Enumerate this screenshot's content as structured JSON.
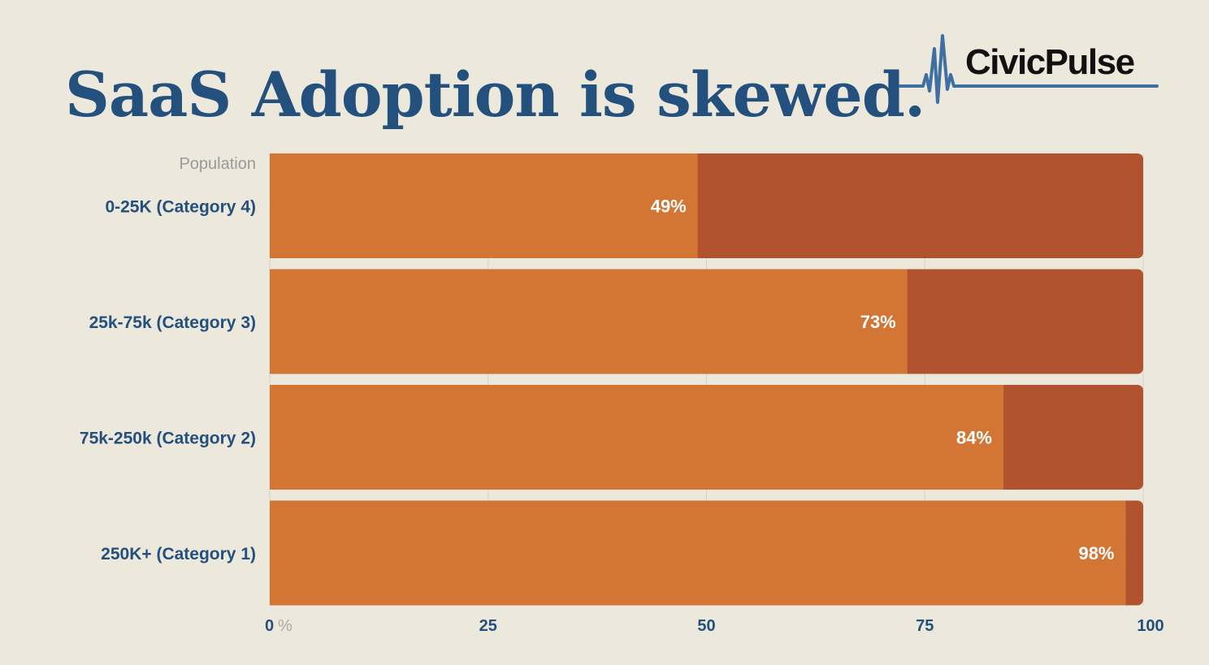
{
  "title": "SaaS Adoption is skewed.",
  "logo": {
    "text": "CivicPulse",
    "icon": "heartbeat-line-icon"
  },
  "colors": {
    "background": "#ece8dc",
    "title": "#24507e",
    "adopted": "#d27535",
    "remainder": "#b0532e",
    "grid": "#d6d2c6"
  },
  "chart_data": {
    "type": "bar",
    "orientation": "horizontal",
    "stacked": true,
    "title": "SaaS Adoption is skewed.",
    "category_axis_label": "Population",
    "categories": [
      "0-25K (Category 4)",
      "25k-75k (Category 3)",
      "75k-250k (Category 2)",
      "250K+ (Category 1)"
    ],
    "series": [
      {
        "values": [
          49,
          73,
          84,
          98
        ],
        "color": "#d27535"
      },
      {
        "values": [
          51,
          27,
          16,
          2
        ],
        "color": "#b0532e"
      }
    ],
    "data_labels": [
      "49%",
      "73%",
      "84%",
      "98%"
    ],
    "x_ticks": [
      "0",
      "25",
      "50",
      "75",
      "100"
    ],
    "x_unit": "%",
    "xlim": [
      0,
      100
    ],
    "grid": true
  }
}
